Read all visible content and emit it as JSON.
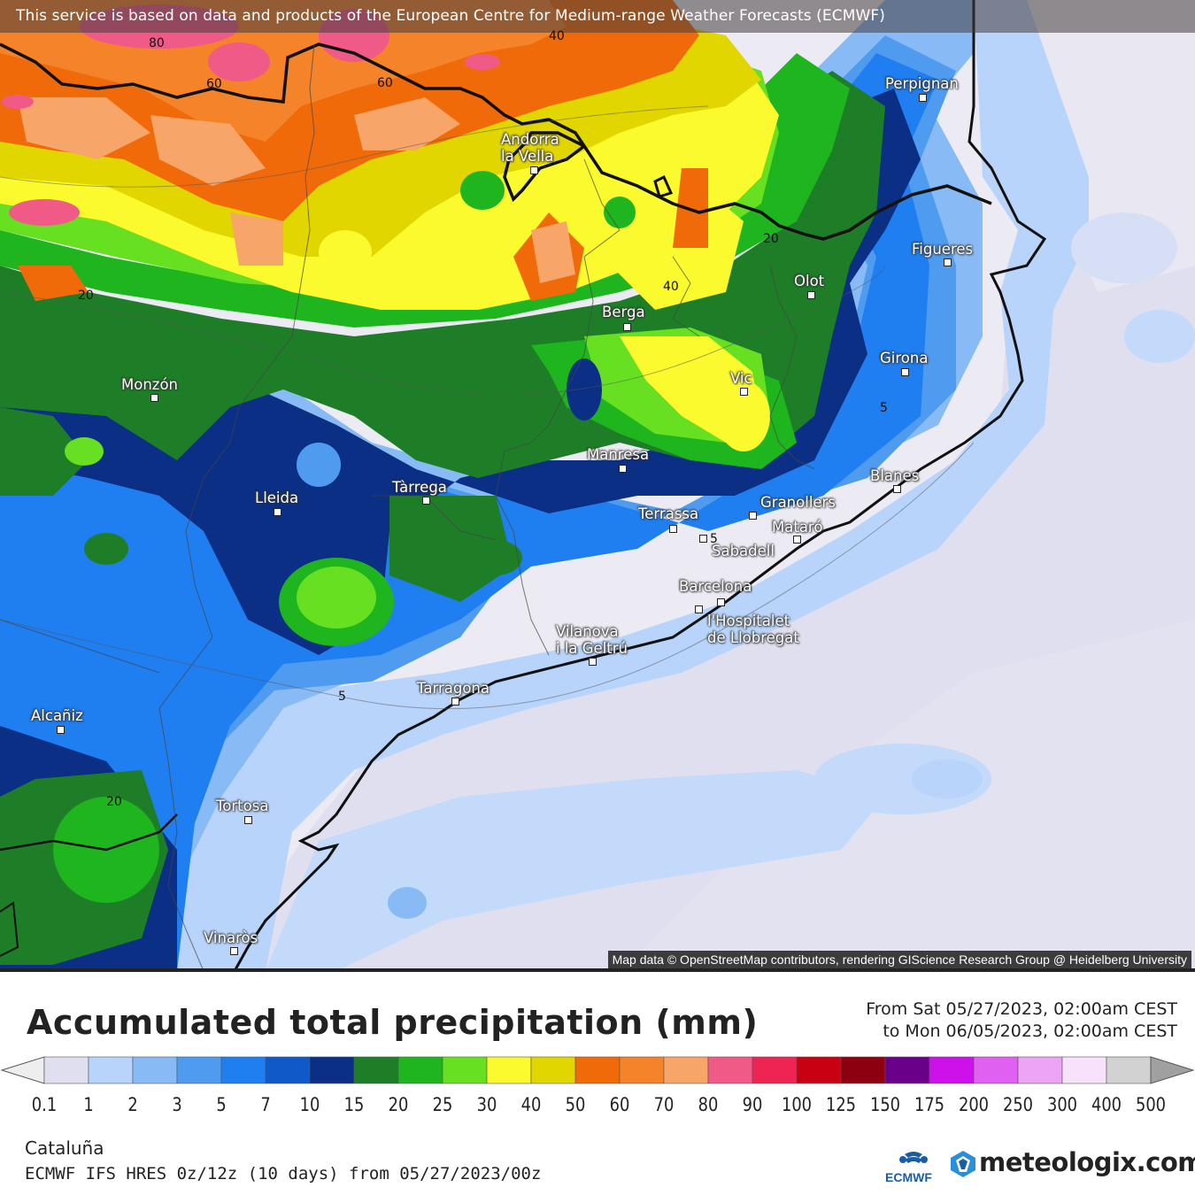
{
  "banner": "This service is based on data and products of the European Centre for Medium-range Weather Forecasts (ECMWF)",
  "attribution": "Map data © OpenStreetMap contributors, rendering GIScience Research Group @ Heidelberg University",
  "cities": {
    "perpignan": "Perpignan",
    "andorra_1": "Andorra",
    "andorra_2": "la Vella",
    "figueres": "Figueres",
    "olot": "Olot",
    "berga": "Berga",
    "girona": "Girona",
    "monzon": "Monzón",
    "vic": "Vic",
    "manresa": "Manresa",
    "blanes": "Blanes",
    "tarrega": "Tàrrega",
    "lleida": "Lleida",
    "granollers": "Granollers",
    "terrassa": "Terrassa",
    "mataro": "Mataró",
    "sabadell": "Sabadell",
    "barcelona": "Barcelona",
    "hospitalet_1": "l'Hospitalet",
    "hospitalet_2": "de Llobregat",
    "vilanova_1": "Vilanova",
    "vilanova_2": "i la Geltrú",
    "tarragona": "Tarragona",
    "alcaniz": "Alcañiz",
    "tortosa": "Tortosa",
    "vinaros": "Vinaròs"
  },
  "contour_labels": [
    "80",
    "60",
    "60",
    "40",
    "20",
    "20",
    "40",
    "5",
    "5",
    "5",
    "20"
  ],
  "title": "Accumulated total precipitation (mm)",
  "period": {
    "from": "From Sat 05/27/2023, 02:00am CEST",
    "to": "to Mon 06/05/2023, 02:00am CEST"
  },
  "legend": {
    "ticks": [
      "0.1",
      "1",
      "2",
      "3",
      "5",
      "7",
      "10",
      "15",
      "20",
      "25",
      "30",
      "40",
      "50",
      "60",
      "70",
      "80",
      "90",
      "100",
      "125",
      "150",
      "175",
      "200",
      "250",
      "300",
      "400",
      "500"
    ],
    "colors": [
      "#e0dff0",
      "#b8d4fa",
      "#88bbf5",
      "#4f9bf0",
      "#1f7ef0",
      "#1059c8",
      "#0a2f85",
      "#1e7e27",
      "#1fb51e",
      "#66e020",
      "#fafa2e",
      "#e2d600",
      "#f06a0a",
      "#f4832a",
      "#f8a56a",
      "#f05a86",
      "#ee2552",
      "#c80012",
      "#8c0010",
      "#6a008a",
      "#cc11ea",
      "#e060f2",
      "#eda4f5",
      "#f8e2fb",
      "#d2d2d2"
    ],
    "under_color": "#eeeeee",
    "over_color": "#a0a0a0"
  },
  "region": "Cataluña",
  "model": "ECMWF IFS HRES 0z/12z (10 days) from  05/27/2023/00z",
  "logos": {
    "ecmwf": "ECMWF",
    "meteologix": "meteologix.com"
  }
}
